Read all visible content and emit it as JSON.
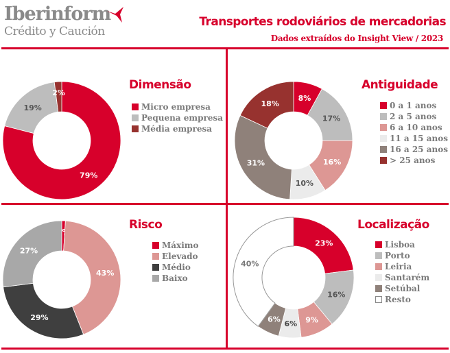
{
  "header": {
    "logo_main": "Iberinform",
    "logo_sub": "Crédito y Caución",
    "title": "Transportes rodoviários de mercadorias",
    "subtitle": "Dados extraídos do Insight View / 2023"
  },
  "chart_data": [
    {
      "type": "pie",
      "title": "Dimensão",
      "categories": [
        "Micro empresa",
        "Pequena empresa",
        "Média empresa"
      ],
      "values": [
        79,
        19,
        2
      ],
      "labels": [
        "79%",
        "19%",
        "2%"
      ],
      "colors": [
        "#d7002b",
        "#bdbdbd",
        "#97322f"
      ],
      "label_colors": [
        "#ffffff",
        "#555555",
        "#ffffff"
      ],
      "legend": "right"
    },
    {
      "type": "pie",
      "title": "Antiguidade",
      "categories": [
        "0 a 1 anos",
        "2 a 5 anos",
        "6 a 10 anos",
        "11 a 15 anos",
        "16 a 25 anos",
        "> 25 anos"
      ],
      "values": [
        8,
        17,
        16,
        10,
        31,
        18
      ],
      "labels": [
        "8%",
        "17%",
        "16%",
        "10%",
        "31%",
        "18%"
      ],
      "colors": [
        "#d7002b",
        "#bdbdbd",
        "#dd9794",
        "#ebebeb",
        "#8f817a",
        "#97322f"
      ],
      "label_colors": [
        "#ffffff",
        "#555555",
        "#ffffff",
        "#555555",
        "#ffffff",
        "#ffffff"
      ],
      "legend": "right"
    },
    {
      "type": "pie",
      "title": "Risco",
      "categories": [
        "Máximo",
        "Elevado",
        "Médio",
        "Baixo"
      ],
      "values": [
        1,
        43,
        29,
        27
      ],
      "labels": [
        "1%",
        "43%",
        "29%",
        "27%"
      ],
      "colors": [
        "#d7002b",
        "#dd9794",
        "#3f3f3f",
        "#a8a8a8"
      ],
      "label_colors": [
        "#ffffff",
        "#ffffff",
        "#ffffff",
        "#ffffff"
      ],
      "legend": "right"
    },
    {
      "type": "pie",
      "title": "Localização",
      "categories": [
        "Lisboa",
        "Porto",
        "Leiria",
        "Santarém",
        "Setúbal",
        "Resto"
      ],
      "values": [
        23,
        16,
        9,
        6,
        6,
        40
      ],
      "labels": [
        "23%",
        "16%",
        "9%",
        "6%",
        "6%",
        "40%"
      ],
      "colors": [
        "#d7002b",
        "#bdbdbd",
        "#dd9794",
        "#ebebeb",
        "#8f817a",
        "#ffffff"
      ],
      "label_colors": [
        "#ffffff",
        "#555555",
        "#ffffff",
        "#444444",
        "#ffffff",
        "#777777"
      ],
      "legend": "right"
    }
  ]
}
